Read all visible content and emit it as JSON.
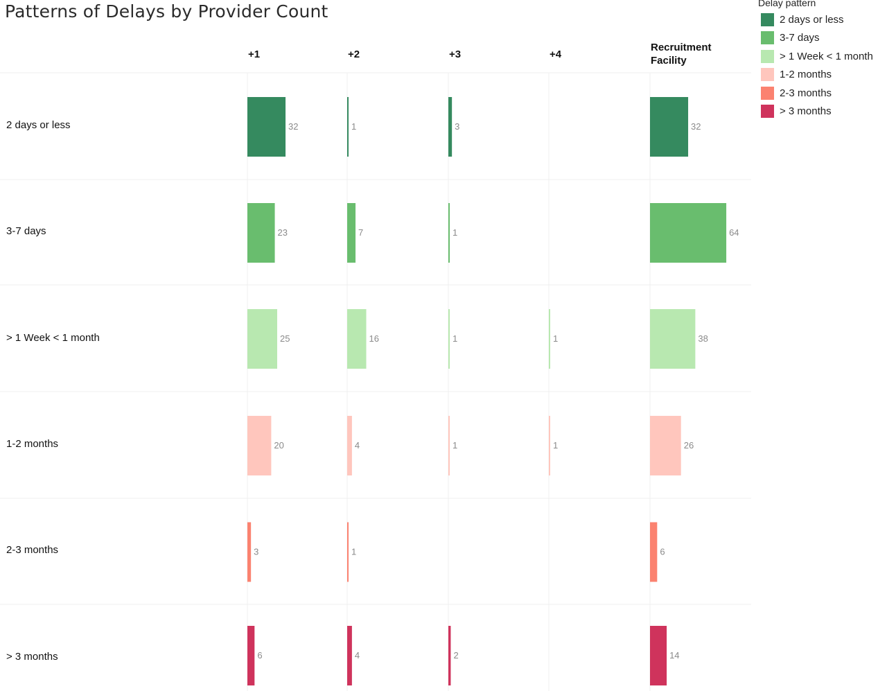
{
  "chart_data": {
    "type": "bar",
    "orientation": "horizontal",
    "title": "Patterns of Delays by Provider Count",
    "columns": [
      "+1",
      "+2",
      "+3",
      "+4",
      "Recruitment Facility"
    ],
    "rows": [
      "2 days or less",
      "3-7 days",
      "> 1 Week < 1 month",
      "1-2 months",
      "2-3 months",
      "> 3 months"
    ],
    "values": [
      [
        32,
        1,
        3,
        null,
        32
      ],
      [
        23,
        7,
        1,
        null,
        64
      ],
      [
        25,
        16,
        1,
        1,
        38
      ],
      [
        20,
        4,
        1,
        1,
        26
      ],
      [
        3,
        1,
        null,
        null,
        6
      ],
      [
        6,
        4,
        2,
        null,
        14
      ]
    ],
    "legend": {
      "title": "Delay pattern",
      "placement": "top-right",
      "items": [
        {
          "label": "2 days or less",
          "color": "#358a5f"
        },
        {
          "label": "3-7 days",
          "color": "#69bd6e"
        },
        {
          "label": "> 1 Week < 1 month",
          "color": "#b8e8b0"
        },
        {
          "label": "1-2 months",
          "color": "#ffc6bd"
        },
        {
          "label": "2-3 months",
          "color": "#fb8270"
        },
        {
          "label": "> 3 months",
          "color": "#cf335c"
        }
      ]
    },
    "xlabel": "",
    "ylabel": "",
    "grid": true
  }
}
